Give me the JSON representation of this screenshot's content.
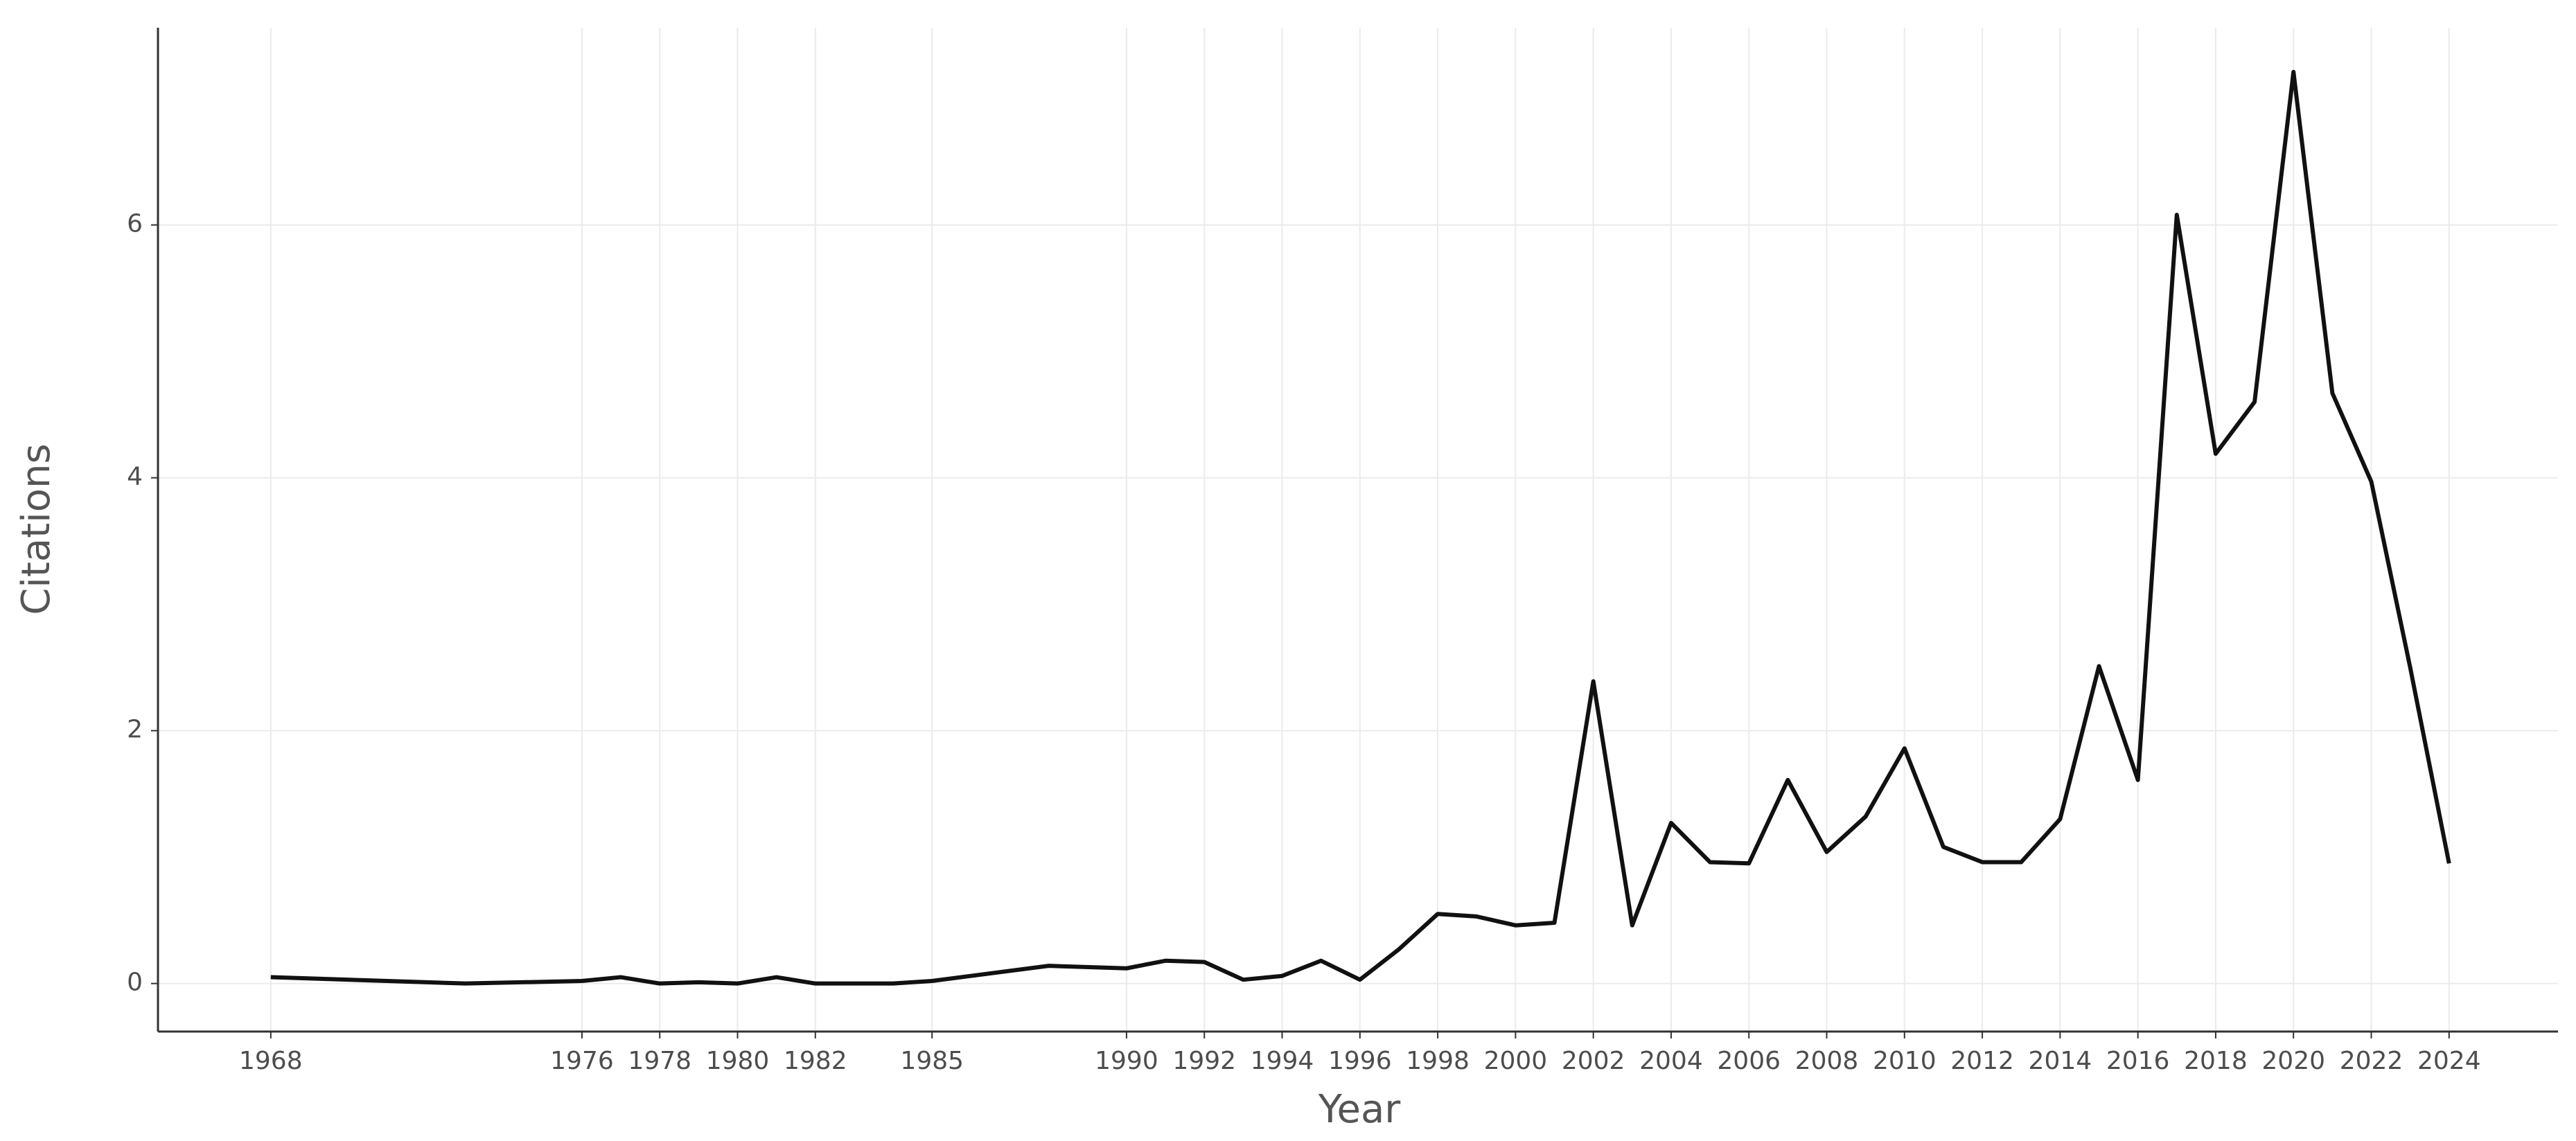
{
  "chart_data": {
    "type": "line",
    "x_label": "Year",
    "y_label": "Citations",
    "series": [
      {
        "name": "Citations",
        "color": "#111111",
        "x": [
          1968,
          1973,
          1976,
          1977,
          1978,
          1979,
          1980,
          1981,
          1982,
          1984,
          1985,
          1988,
          1990,
          1991,
          1992,
          1993,
          1994,
          1995,
          1996,
          1997,
          1998,
          1999,
          2000,
          2001,
          2002,
          2003,
          2004,
          2005,
          2006,
          2007,
          2008,
          2009,
          2010,
          2011,
          2012,
          2013,
          2014,
          2015,
          2016,
          2017,
          2018,
          2019,
          2020,
          2021,
          2022,
          2023,
          2024
        ],
        "values": [
          0.05,
          0.0,
          0.02,
          0.05,
          0.0,
          0.01,
          0.0,
          0.05,
          0.0,
          0.0,
          0.02,
          0.14,
          0.12,
          0.18,
          0.17,
          0.03,
          0.06,
          0.18,
          0.03,
          0.27,
          0.55,
          0.53,
          0.46,
          0.48,
          2.39,
          0.46,
          1.27,
          0.96,
          0.95,
          1.61,
          1.04,
          1.32,
          1.86,
          1.08,
          0.96,
          0.96,
          1.3,
          2.51,
          1.61,
          6.08,
          4.19,
          4.6,
          7.21,
          4.67,
          3.97,
          2.5,
          0.95
        ]
      }
    ],
    "xlim": [
      1965.1,
      2026.8
    ],
    "xticks": [
      1968,
      1976,
      1978,
      1980,
      1982,
      1985,
      1990,
      1992,
      1994,
      1996,
      1998,
      2000,
      2002,
      2004,
      2006,
      2008,
      2010,
      2012,
      2014,
      2016,
      2018,
      2020,
      2022,
      2024
    ],
    "ylim": [
      -0.38,
      7.56
    ],
    "yticks": [
      0,
      2,
      4,
      6
    ],
    "grid": true
  }
}
